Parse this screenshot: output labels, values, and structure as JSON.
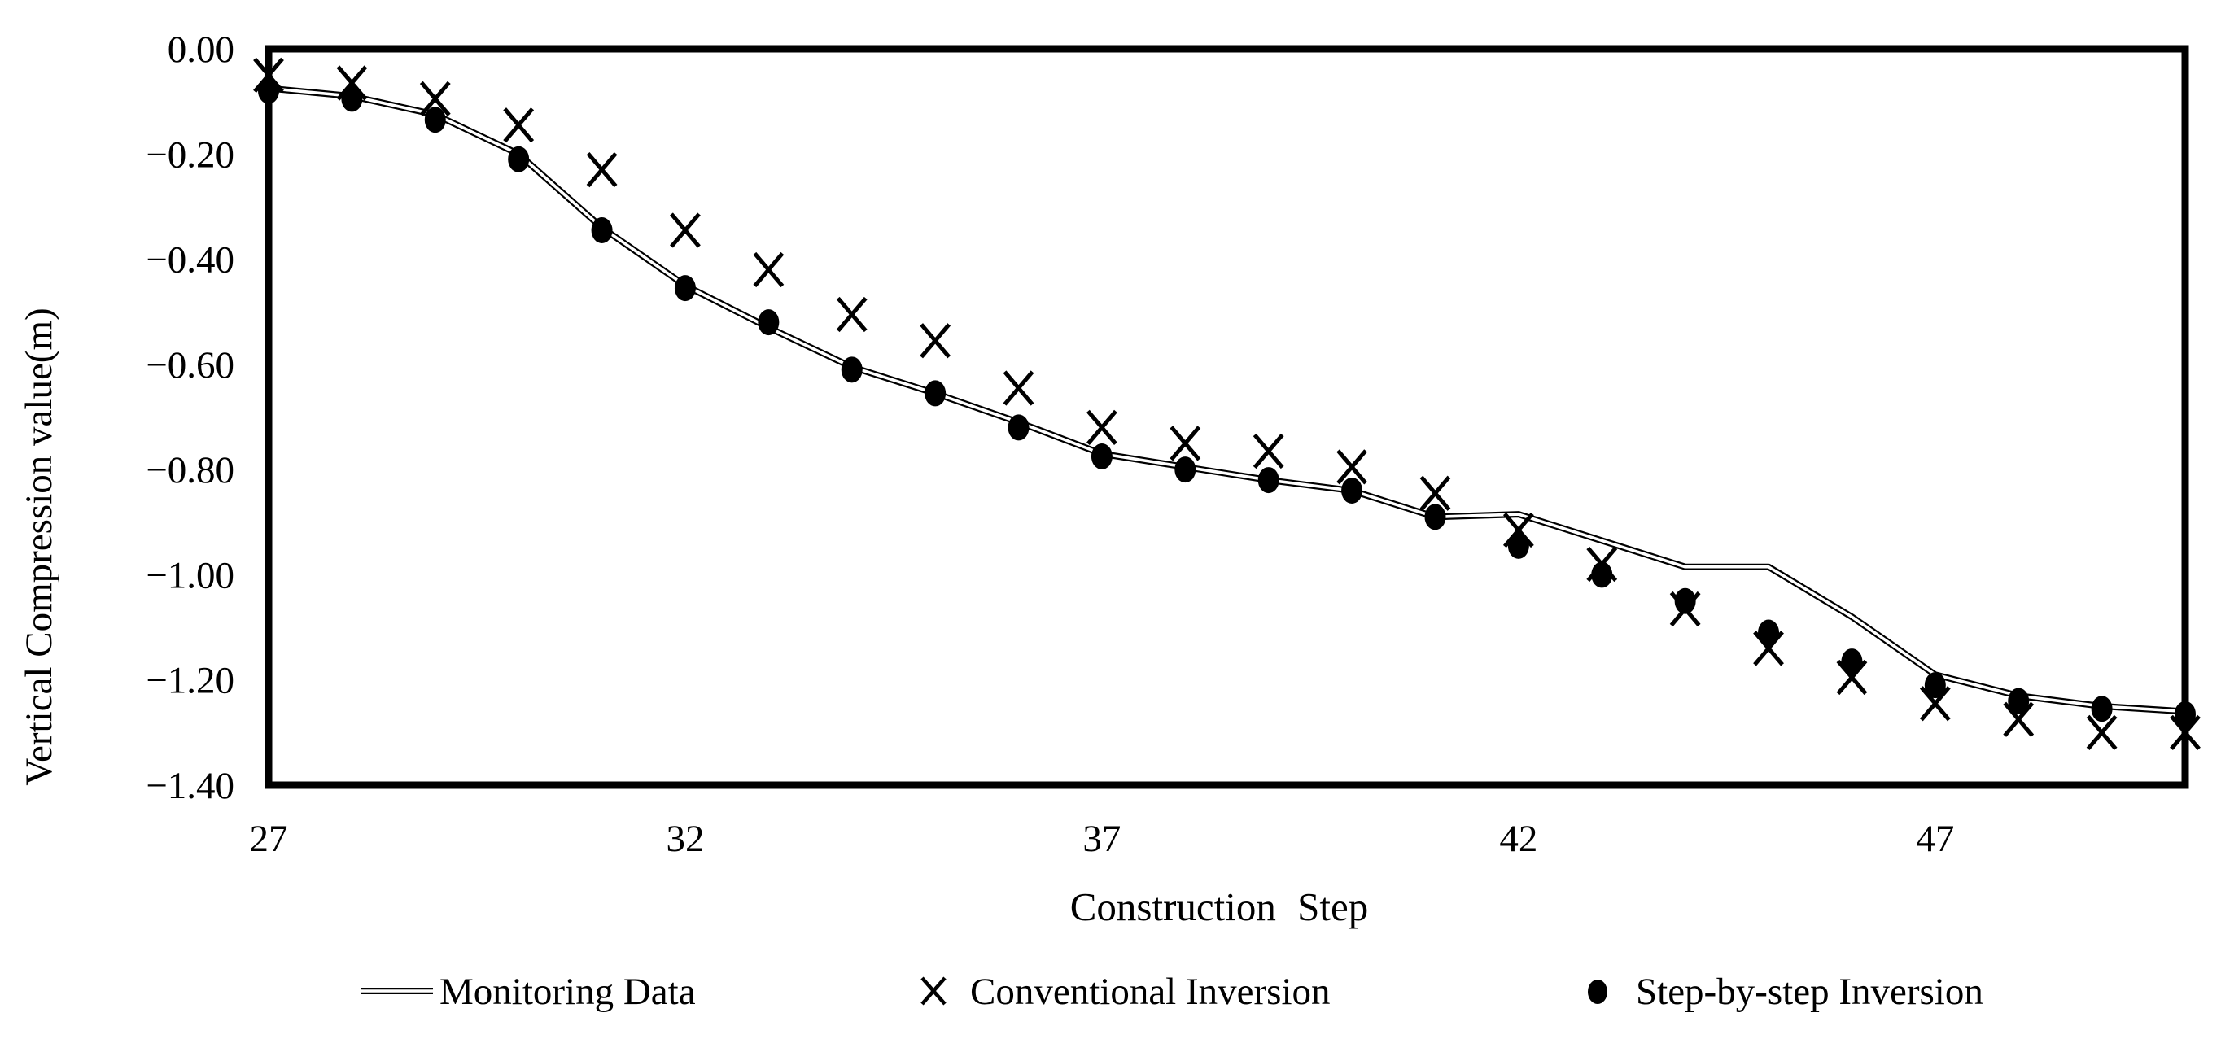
{
  "figure": {
    "background": "#ffffff",
    "foreground": "#000000"
  },
  "chart_data": {
    "type": "line",
    "title": "",
    "xlabel": "Construction Step",
    "ylabel": "Vertical Compression value(m)",
    "xlim": [
      27,
      50
    ],
    "ylim": [
      -1.4,
      0.0
    ],
    "grid": false,
    "legend_position": "bottom",
    "frame": "full-box",
    "x": [
      27,
      28,
      29,
      30,
      31,
      32,
      33,
      34,
      35,
      36,
      37,
      38,
      39,
      40,
      41,
      42,
      43,
      44,
      45,
      46,
      47,
      48,
      49,
      50
    ],
    "xticks": {
      "values": [
        27,
        32,
        37,
        42,
        47
      ],
      "labels": [
        "27",
        "32",
        "37",
        "42",
        "47"
      ]
    },
    "yticks": {
      "values": [
        0.0,
        -0.2,
        -0.4,
        -0.6,
        -0.8,
        -1.0,
        -1.2,
        -1.4
      ],
      "labels": [
        "0.00",
        "−0.20",
        "−0.40",
        "−0.60",
        "−0.80",
        "−1.00",
        "−1.20",
        "−1.40"
      ]
    },
    "series": [
      {
        "name": "Monitoring Data",
        "render": "line",
        "marker": "none",
        "line_style": "double-line",
        "color": "#000000",
        "values": [
          -0.075,
          -0.09,
          -0.125,
          -0.2,
          -0.34,
          -0.45,
          -0.53,
          -0.605,
          -0.655,
          -0.71,
          -0.77,
          -0.795,
          -0.82,
          -0.84,
          -0.89,
          -0.885,
          -0.935,
          -0.985,
          -0.985,
          -1.08,
          -1.19,
          -1.23,
          -1.25,
          -1.26
        ]
      },
      {
        "name": "Conventional Inversion",
        "render": "scatter",
        "marker": "x",
        "color": "#000000",
        "values": [
          -0.05,
          -0.065,
          -0.095,
          -0.145,
          -0.23,
          -0.345,
          -0.42,
          -0.505,
          -0.555,
          -0.645,
          -0.72,
          -0.75,
          -0.765,
          -0.795,
          -0.845,
          -0.915,
          -0.98,
          -1.065,
          -1.14,
          -1.195,
          -1.245,
          -1.275,
          -1.3,
          -1.3
        ]
      },
      {
        "name": "Step-by-step Inversion",
        "render": "scatter",
        "marker": "filled-circle",
        "color": "#000000",
        "values": [
          -0.08,
          -0.095,
          -0.135,
          -0.21,
          -0.345,
          -0.455,
          -0.52,
          -0.61,
          -0.655,
          -0.72,
          -0.775,
          -0.8,
          -0.82,
          -0.84,
          -0.89,
          -0.945,
          -1.0,
          -1.05,
          -1.11,
          -1.165,
          -1.21,
          -1.24,
          -1.255,
          -1.265
        ]
      }
    ]
  }
}
